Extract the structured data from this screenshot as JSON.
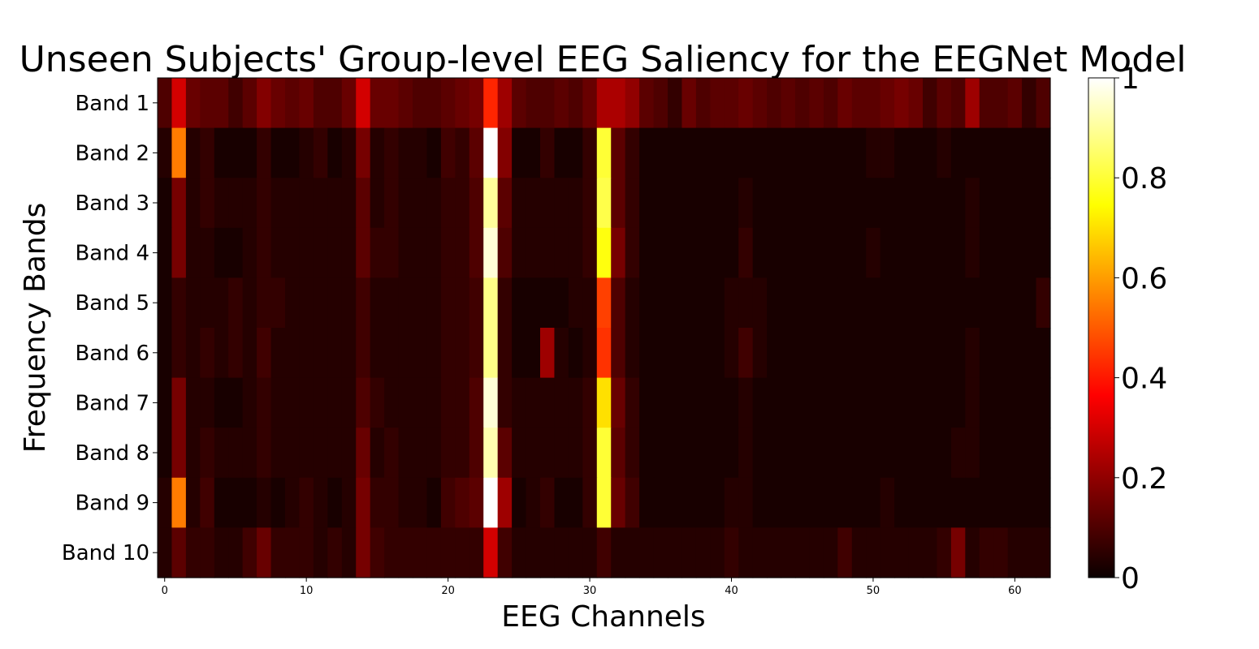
{
  "chart_data": {
    "type": "heatmap",
    "title": "Unseen Subjects' Group-level EEG Saliency for the EEGNet Model",
    "xlabel": "EEG Channels",
    "ylabel": "Frequency Bands",
    "y_categories": [
      "Band 1",
      "Band 2",
      "Band 3",
      "Band 4",
      "Band 5",
      "Band 6",
      "Band 7",
      "Band 8",
      "Band 9",
      "Band 10"
    ],
    "x_range": [
      0,
      61
    ],
    "x_ticks": [
      0,
      10,
      20,
      30,
      40,
      50,
      60
    ],
    "colormap": "hot",
    "colorbar": {
      "range": [
        0,
        1
      ],
      "ticks": [
        {
          "value": 0,
          "label": "0"
        },
        {
          "value": 0.2,
          "label": "0.2"
        },
        {
          "value": 0.4,
          "label": "0.4"
        },
        {
          "value": 0.6,
          "label": "0.6"
        },
        {
          "value": 0.8,
          "label": "0.8"
        },
        {
          "value": 1,
          "label": "1"
        }
      ]
    },
    "values": [
      [
        0.1,
        0.3,
        0.14,
        0.12,
        0.12,
        0.08,
        0.12,
        0.18,
        0.14,
        0.12,
        0.14,
        0.1,
        0.1,
        0.14,
        0.3,
        0.14,
        0.14,
        0.12,
        0.1,
        0.1,
        0.12,
        0.14,
        0.16,
        0.42,
        0.22,
        0.12,
        0.1,
        0.1,
        0.12,
        0.1,
        0.14,
        0.24,
        0.24,
        0.2,
        0.12,
        0.1,
        0.06,
        0.14,
        0.1,
        0.12,
        0.12,
        0.14,
        0.12,
        0.1,
        0.12,
        0.1,
        0.12,
        0.1,
        0.14,
        0.12,
        0.12,
        0.14,
        0.16,
        0.14,
        0.08,
        0.12,
        0.1,
        0.22,
        0.1,
        0.1,
        0.12,
        0.06,
        0.1
      ],
      [
        0.04,
        0.55,
        0.04,
        0.06,
        0.02,
        0.02,
        0.02,
        0.06,
        0.02,
        0.02,
        0.04,
        0.06,
        0.02,
        0.04,
        0.16,
        0.04,
        0.06,
        0.04,
        0.04,
        0.02,
        0.08,
        0.06,
        0.12,
        1.0,
        0.18,
        0.02,
        0.02,
        0.06,
        0.02,
        0.02,
        0.06,
        0.8,
        0.12,
        0.06,
        0.02,
        0.02,
        0.02,
        0.02,
        0.02,
        0.02,
        0.02,
        0.02,
        0.02,
        0.02,
        0.02,
        0.02,
        0.02,
        0.02,
        0.02,
        0.02,
        0.04,
        0.04,
        0.02,
        0.02,
        0.02,
        0.04,
        0.02,
        0.02,
        0.02,
        0.02,
        0.02,
        0.02,
        0.02
      ],
      [
        0.02,
        0.16,
        0.04,
        0.06,
        0.04,
        0.04,
        0.04,
        0.06,
        0.04,
        0.04,
        0.04,
        0.04,
        0.04,
        0.04,
        0.12,
        0.04,
        0.06,
        0.04,
        0.04,
        0.04,
        0.06,
        0.06,
        0.1,
        0.9,
        0.12,
        0.04,
        0.04,
        0.04,
        0.04,
        0.04,
        0.06,
        0.82,
        0.12,
        0.06,
        0.02,
        0.02,
        0.02,
        0.02,
        0.02,
        0.02,
        0.02,
        0.04,
        0.02,
        0.02,
        0.02,
        0.02,
        0.02,
        0.02,
        0.02,
        0.02,
        0.02,
        0.02,
        0.02,
        0.02,
        0.02,
        0.02,
        0.02,
        0.04,
        0.02,
        0.02,
        0.02,
        0.02,
        0.02
      ],
      [
        0.02,
        0.16,
        0.04,
        0.04,
        0.02,
        0.02,
        0.04,
        0.06,
        0.04,
        0.04,
        0.04,
        0.04,
        0.04,
        0.04,
        0.12,
        0.06,
        0.06,
        0.04,
        0.04,
        0.04,
        0.06,
        0.06,
        0.1,
        0.96,
        0.1,
        0.04,
        0.04,
        0.04,
        0.04,
        0.04,
        0.06,
        0.76,
        0.16,
        0.06,
        0.02,
        0.02,
        0.02,
        0.02,
        0.02,
        0.02,
        0.02,
        0.06,
        0.02,
        0.02,
        0.02,
        0.02,
        0.02,
        0.02,
        0.02,
        0.02,
        0.04,
        0.02,
        0.02,
        0.02,
        0.02,
        0.02,
        0.02,
        0.04,
        0.02,
        0.02,
        0.02,
        0.02,
        0.02
      ],
      [
        0.02,
        0.06,
        0.04,
        0.04,
        0.04,
        0.06,
        0.04,
        0.06,
        0.06,
        0.04,
        0.04,
        0.04,
        0.04,
        0.04,
        0.08,
        0.04,
        0.04,
        0.04,
        0.04,
        0.04,
        0.06,
        0.06,
        0.08,
        0.88,
        0.06,
        0.02,
        0.02,
        0.02,
        0.02,
        0.04,
        0.04,
        0.46,
        0.1,
        0.04,
        0.02,
        0.02,
        0.02,
        0.02,
        0.02,
        0.02,
        0.04,
        0.04,
        0.04,
        0.02,
        0.02,
        0.02,
        0.02,
        0.02,
        0.02,
        0.02,
        0.02,
        0.02,
        0.02,
        0.02,
        0.02,
        0.02,
        0.02,
        0.02,
        0.02,
        0.02,
        0.02,
        0.02,
        0.06
      ],
      [
        0.02,
        0.06,
        0.04,
        0.06,
        0.04,
        0.06,
        0.04,
        0.08,
        0.04,
        0.04,
        0.04,
        0.04,
        0.04,
        0.04,
        0.08,
        0.04,
        0.04,
        0.04,
        0.04,
        0.04,
        0.06,
        0.06,
        0.08,
        0.88,
        0.06,
        0.02,
        0.02,
        0.22,
        0.04,
        0.02,
        0.04,
        0.44,
        0.1,
        0.04,
        0.02,
        0.02,
        0.02,
        0.02,
        0.02,
        0.02,
        0.04,
        0.08,
        0.04,
        0.02,
        0.02,
        0.02,
        0.02,
        0.02,
        0.02,
        0.02,
        0.02,
        0.02,
        0.02,
        0.02,
        0.02,
        0.02,
        0.02,
        0.04,
        0.02,
        0.02,
        0.02,
        0.02,
        0.02
      ],
      [
        0.02,
        0.16,
        0.04,
        0.04,
        0.02,
        0.02,
        0.04,
        0.06,
        0.04,
        0.04,
        0.04,
        0.04,
        0.04,
        0.04,
        0.1,
        0.06,
        0.04,
        0.04,
        0.04,
        0.04,
        0.06,
        0.06,
        0.1,
        0.96,
        0.06,
        0.04,
        0.04,
        0.04,
        0.04,
        0.04,
        0.06,
        0.7,
        0.14,
        0.06,
        0.02,
        0.02,
        0.02,
        0.02,
        0.02,
        0.02,
        0.02,
        0.04,
        0.02,
        0.02,
        0.02,
        0.02,
        0.02,
        0.02,
        0.02,
        0.02,
        0.02,
        0.02,
        0.02,
        0.02,
        0.02,
        0.02,
        0.02,
        0.04,
        0.02,
        0.02,
        0.02,
        0.02,
        0.02
      ],
      [
        0.02,
        0.16,
        0.04,
        0.06,
        0.04,
        0.04,
        0.04,
        0.06,
        0.04,
        0.04,
        0.04,
        0.04,
        0.04,
        0.04,
        0.14,
        0.04,
        0.06,
        0.04,
        0.04,
        0.04,
        0.06,
        0.06,
        0.1,
        0.92,
        0.12,
        0.04,
        0.04,
        0.04,
        0.04,
        0.04,
        0.06,
        0.8,
        0.12,
        0.06,
        0.02,
        0.02,
        0.02,
        0.02,
        0.02,
        0.02,
        0.02,
        0.04,
        0.02,
        0.02,
        0.02,
        0.02,
        0.02,
        0.02,
        0.02,
        0.02,
        0.02,
        0.02,
        0.02,
        0.02,
        0.02,
        0.02,
        0.04,
        0.04,
        0.02,
        0.02,
        0.02,
        0.02,
        0.02
      ],
      [
        0.04,
        0.55,
        0.04,
        0.08,
        0.02,
        0.02,
        0.02,
        0.04,
        0.02,
        0.04,
        0.06,
        0.04,
        0.02,
        0.04,
        0.16,
        0.06,
        0.06,
        0.04,
        0.04,
        0.02,
        0.08,
        0.1,
        0.12,
        1.0,
        0.22,
        0.02,
        0.04,
        0.06,
        0.02,
        0.02,
        0.06,
        0.8,
        0.14,
        0.08,
        0.02,
        0.02,
        0.02,
        0.02,
        0.02,
        0.02,
        0.04,
        0.04,
        0.02,
        0.02,
        0.02,
        0.02,
        0.02,
        0.02,
        0.02,
        0.02,
        0.02,
        0.04,
        0.02,
        0.02,
        0.02,
        0.02,
        0.02,
        0.02,
        0.02,
        0.02,
        0.02,
        0.02,
        0.02
      ],
      [
        0.04,
        0.12,
        0.06,
        0.06,
        0.04,
        0.04,
        0.08,
        0.14,
        0.06,
        0.06,
        0.06,
        0.04,
        0.06,
        0.04,
        0.16,
        0.08,
        0.06,
        0.06,
        0.06,
        0.06,
        0.06,
        0.06,
        0.06,
        0.3,
        0.08,
        0.04,
        0.04,
        0.04,
        0.04,
        0.04,
        0.04,
        0.08,
        0.04,
        0.04,
        0.04,
        0.04,
        0.04,
        0.04,
        0.04,
        0.04,
        0.06,
        0.04,
        0.04,
        0.04,
        0.04,
        0.04,
        0.04,
        0.04,
        0.08,
        0.04,
        0.04,
        0.04,
        0.04,
        0.04,
        0.04,
        0.06,
        0.16,
        0.04,
        0.06,
        0.06,
        0.04,
        0.04,
        0.04
      ]
    ]
  }
}
